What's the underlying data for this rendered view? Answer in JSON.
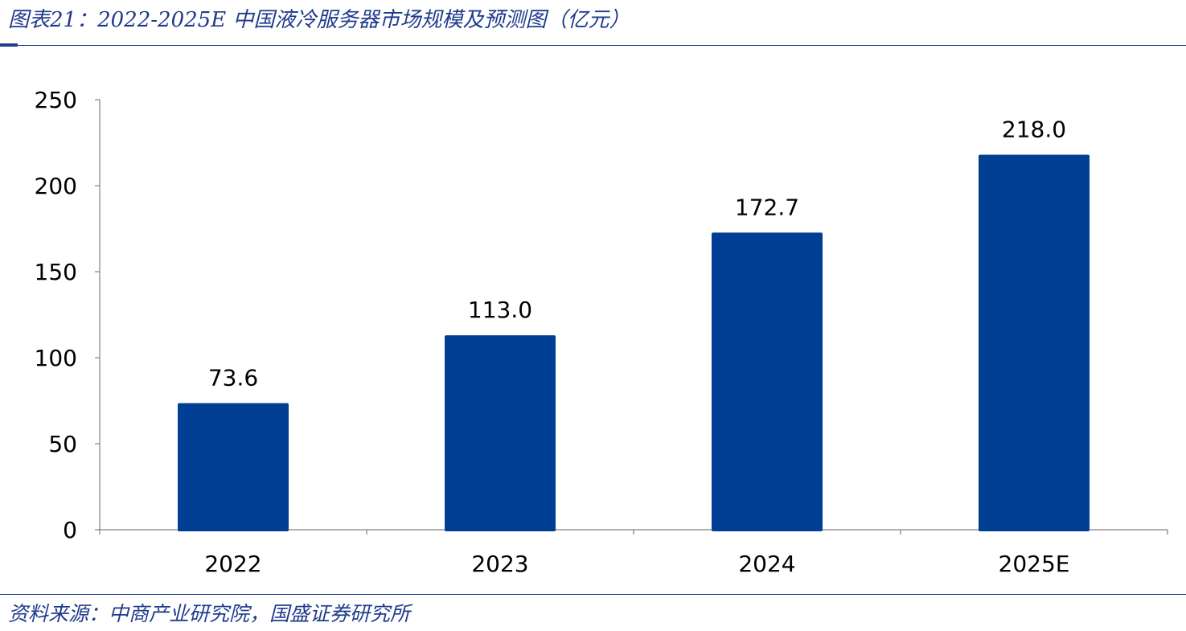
{
  "header": {
    "title": "图表21：2022-2025E 中国液冷服务器市场规模及预测图（亿元）"
  },
  "footer": {
    "source": "资料来源：中商产业研究院，国盛证券研究所"
  },
  "colors": {
    "bar": "#003f94",
    "rule": "#1f3b8c",
    "axis": "#808080"
  },
  "chart_data": {
    "type": "bar",
    "title": "",
    "xlabel": "",
    "ylabel": "",
    "categories": [
      "2022",
      "2023",
      "2024",
      "2025E"
    ],
    "values": [
      73.6,
      113.0,
      172.7,
      218.0
    ],
    "data_labels": [
      "73.6",
      "113.0",
      "172.7",
      "218.0"
    ],
    "ylim": [
      0,
      250
    ],
    "yticks": [
      0,
      50,
      100,
      150,
      200,
      250
    ],
    "grid": false,
    "legend": "none"
  }
}
